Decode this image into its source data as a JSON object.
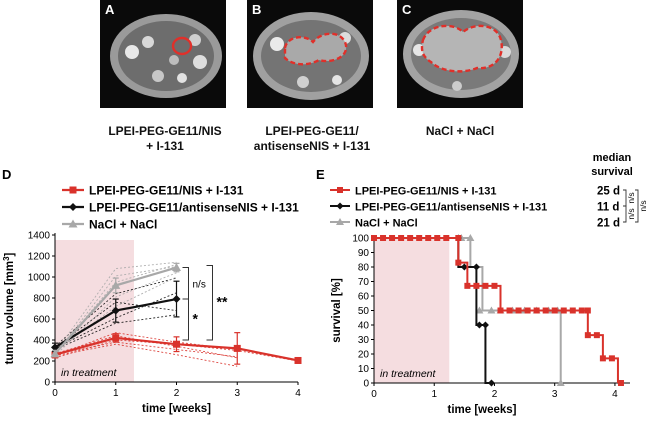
{
  "panels": {
    "a": {
      "letter": "A",
      "caption_line1": "LPEI-PEG-GE11/NIS",
      "caption_line2": "+ I-131"
    },
    "b": {
      "letter": "B",
      "caption_line1": "LPEI-PEG-GE11/",
      "caption_line2": "antisenseNIS + I-131"
    },
    "c": {
      "letter": "C",
      "caption": "NaCl + NaCl"
    }
  },
  "colors": {
    "red": "#d9322b",
    "black": "#111111",
    "gray": "#a8a8a8",
    "shade": "#f5dde0",
    "tumor_outline": "#e0302a"
  },
  "chart_data": [
    {
      "panel": "D",
      "type": "line",
      "xlabel": "time [weeks]",
      "ylabel": "tumor volume [mm³]",
      "ylabel_main": "tumor volume [mm",
      "ylabel_sup": "3",
      "ylabel_end": "]",
      "xlim": [
        0,
        4
      ],
      "ylim": [
        0,
        1400
      ],
      "xticks": [
        "0",
        "1",
        "2",
        "3",
        "4"
      ],
      "yticks": [
        "0",
        "200",
        "400",
        "600",
        "800",
        "1000",
        "1200",
        "1400"
      ],
      "annotation_treatment": "in treatment",
      "treatment_weeks": [
        0,
        1.3
      ],
      "legend": [
        "LPEI-PEG-GE11/NIS + I-131",
        "LPEI-PEG-GE11/antisenseNIS + I-131",
        "NaCl + NaCl"
      ],
      "series": [
        {
          "name": "LPEI-PEG-GE11/NIS + I-131",
          "color": "red",
          "x": [
            0,
            1,
            2,
            3,
            4
          ],
          "values": [
            260,
            420,
            360,
            320,
            205
          ],
          "err": [
            30,
            40,
            70,
            150,
            0
          ],
          "individual": [
            [
              250,
              470,
              380,
              310
            ],
            [
              270,
              440,
              340,
              230
            ],
            [
              230,
              400,
              360,
              300,
              200
            ],
            [
              260,
              380,
              310,
              240
            ],
            [
              250,
              360,
              260,
              150
            ]
          ]
        },
        {
          "name": "LPEI-PEG-GE11/antisenseNIS + I-131",
          "color": "black",
          "x": [
            0,
            1,
            2
          ],
          "values": [
            330,
            680,
            790
          ],
          "err": [
            40,
            110,
            170
          ],
          "individual": [
            [
              340,
              840,
              990
            ],
            [
              320,
              610,
              850
            ],
            [
              330,
              760,
              680
            ],
            [
              310,
              560,
              640
            ]
          ]
        },
        {
          "name": "NaCl + NaCl",
          "color": "gray",
          "x": [
            0,
            1,
            2
          ],
          "values": [
            270,
            920,
            1090
          ],
          "err": [
            30,
            70,
            40
          ],
          "individual": [
            [
              280,
              1080,
              1140
            ],
            [
              260,
              1010,
              1100
            ],
            [
              270,
              950,
              1120
            ],
            [
              250,
              810,
              1040
            ],
            [
              290,
              720,
              1000
            ]
          ]
        }
      ],
      "significance": [
        {
          "label": "n/s",
          "between": [
            "NaCl + NaCl",
            "LPEI-PEG-GE11/antisenseNIS + I-131"
          ]
        },
        {
          "label": "*",
          "between": [
            "LPEI-PEG-GE11/antisenseNIS + I-131",
            "LPEI-PEG-GE11/NIS + I-131"
          ]
        },
        {
          "label": "**",
          "between": [
            "NaCl + NaCl",
            "LPEI-PEG-GE11/NIS + I-131"
          ]
        }
      ]
    },
    {
      "panel": "E",
      "type": "line",
      "subtype": "kaplan-meier",
      "xlabel": "time [weeks]",
      "ylabel": "survival [%]",
      "xlim": [
        0,
        4.25
      ],
      "ylim": [
        0,
        100
      ],
      "xticks": [
        "0",
        "1",
        "2",
        "3",
        "4"
      ],
      "yticks": [
        "0",
        "10",
        "20",
        "30",
        "40",
        "50",
        "60",
        "70",
        "80",
        "90",
        "100"
      ],
      "annotation_treatment": "in treatment",
      "treatment_weeks": [
        0,
        1.25
      ],
      "median_header_line1": "median",
      "median_header_line2": "survival",
      "legend": [
        "LPEI-PEG-GE11/NIS + I-131",
        "LPEI-PEG-GE11/antisenseNIS + I-131",
        "NaCl + NaCl"
      ],
      "medians": [
        "25 d",
        "11 d",
        "21 d"
      ],
      "comparisons": [
        {
          "label": "n/s",
          "between": [
            "LPEI-PEG-GE11/NIS + I-131",
            "LPEI-PEG-GE11/antisenseNIS + I-131"
          ]
        },
        {
          "label": "n/s",
          "between": [
            "LPEI-PEG-GE11/antisenseNIS + I-131",
            "NaCl + NaCl"
          ]
        },
        {
          "label": "n/s",
          "between": [
            "LPEI-PEG-GE11/NIS + I-131",
            "NaCl + NaCl"
          ]
        }
      ],
      "series": [
        {
          "name": "LPEI-PEG-GE11/NIS + I-131",
          "color": "red",
          "steps": [
            [
              0,
              100
            ],
            [
              1.4,
              100
            ],
            [
              1.4,
              83
            ],
            [
              1.55,
              83
            ],
            [
              1.55,
              67
            ],
            [
              2.1,
              67
            ],
            [
              2.1,
              50
            ],
            [
              3.55,
              50
            ],
            [
              3.55,
              33
            ],
            [
              3.8,
              33
            ],
            [
              3.8,
              17
            ],
            [
              4.05,
              17
            ],
            [
              4.05,
              0
            ]
          ],
          "markers": [
            [
              0,
              100
            ],
            [
              0.15,
              100
            ],
            [
              0.3,
              100
            ],
            [
              0.45,
              100
            ],
            [
              0.6,
              100
            ],
            [
              0.75,
              100
            ],
            [
              0.9,
              100
            ],
            [
              1.05,
              100
            ],
            [
              1.2,
              100
            ],
            [
              1.4,
              100
            ],
            [
              1.4,
              83
            ],
            [
              1.55,
              67
            ],
            [
              1.7,
              67
            ],
            [
              1.85,
              67
            ],
            [
              2.0,
              67
            ],
            [
              2.1,
              50
            ],
            [
              2.25,
              50
            ],
            [
              2.4,
              50
            ],
            [
              2.55,
              50
            ],
            [
              2.7,
              50
            ],
            [
              2.85,
              50
            ],
            [
              3.0,
              50
            ],
            [
              3.15,
              50
            ],
            [
              3.3,
              50
            ],
            [
              3.45,
              50
            ],
            [
              3.55,
              50
            ],
            [
              3.55,
              33
            ],
            [
              3.7,
              33
            ],
            [
              3.8,
              17
            ],
            [
              3.95,
              17
            ],
            [
              4.1,
              0
            ]
          ]
        },
        {
          "name": "LPEI-PEG-GE11/antisenseNIS + I-131",
          "color": "black",
          "steps": [
            [
              0,
              100
            ],
            [
              1.4,
              100
            ],
            [
              1.4,
              80
            ],
            [
              1.7,
              80
            ],
            [
              1.7,
              40
            ],
            [
              1.85,
              40
            ],
            [
              1.85,
              0
            ],
            [
              1.95,
              0
            ]
          ],
          "markers": [
            [
              1.4,
              100
            ],
            [
              1.5,
              80
            ],
            [
              1.7,
              80
            ],
            [
              1.75,
              40
            ],
            [
              1.85,
              40
            ],
            [
              1.95,
              0
            ]
          ]
        },
        {
          "name": "NaCl + NaCl",
          "color": "gray",
          "steps": [
            [
              0,
              100
            ],
            [
              1.6,
              100
            ],
            [
              1.6,
              80
            ],
            [
              1.8,
              80
            ],
            [
              1.8,
              50
            ],
            [
              3.1,
              50
            ],
            [
              3.1,
              0
            ]
          ],
          "markers": [
            [
              1.45,
              100
            ],
            [
              1.6,
              100
            ],
            [
              1.75,
              50
            ],
            [
              1.95,
              50
            ],
            [
              2.1,
              50
            ],
            [
              2.3,
              50
            ],
            [
              2.5,
              50
            ],
            [
              2.7,
              50
            ],
            [
              2.9,
              50
            ],
            [
              3.05,
              50
            ],
            [
              3.1,
              0
            ]
          ]
        }
      ]
    }
  ]
}
